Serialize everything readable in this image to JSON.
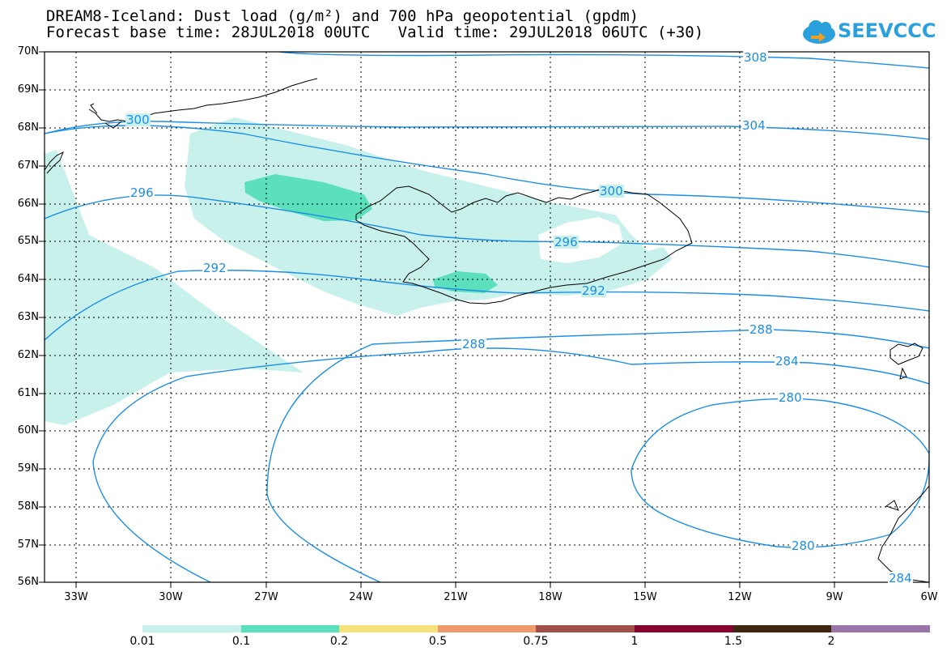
{
  "title_line1": "DREAM8-Iceland: Dust load (g/m²) and 700 hPa geopotential (gpdm)",
  "title_line2": "Forecast base time: 28JUL2018 00UTC   Valid time: 29JUL2018 06UTC (+30)",
  "logo_text": "SEEVCCC",
  "lat_labels": [
    "70N",
    "69N",
    "68N",
    "67N",
    "66N",
    "65N",
    "64N",
    "63N",
    "62N",
    "61N",
    "60N",
    "59N",
    "58N",
    "57N",
    "56N"
  ],
  "lon_labels": [
    "33W",
    "30W",
    "27W",
    "24W",
    "21W",
    "18W",
    "15W",
    "12W",
    "9W",
    "6W"
  ],
  "contour_labels": [
    "308",
    "304",
    "300",
    "300",
    "296",
    "296",
    "292",
    "292",
    "288",
    "288",
    "284",
    "284",
    "280",
    "280"
  ],
  "legend": {
    "values": [
      "0.01",
      "0.1",
      "0.2",
      "0.5",
      "0.75",
      "1",
      "1.5",
      "2"
    ],
    "colors": [
      "#c8f1ec",
      "#5ce0bc",
      "#f5e27a",
      "#ef9a6b",
      "#a05048",
      "#860530",
      "#3e2610",
      "#9a76a8"
    ]
  },
  "colors": {
    "contour": "#1a8ee6",
    "coast": "#000000",
    "grid": "#000000"
  }
}
